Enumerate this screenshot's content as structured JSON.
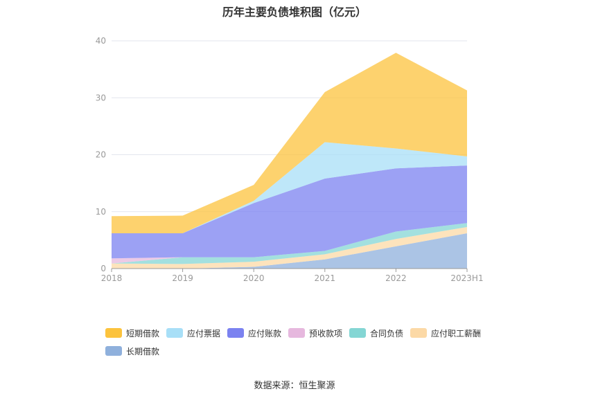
{
  "chart_data": {
    "type": "area",
    "stacked": true,
    "title": "历年主要负债堆积图（亿元）",
    "categories": [
      "2018",
      "2019",
      "2020",
      "2021",
      "2022",
      "2023H1"
    ],
    "ylim": [
      0,
      40
    ],
    "yticks": [
      0,
      10,
      20,
      30,
      40
    ],
    "grid": true,
    "legend_position": "bottom",
    "series": [
      {
        "name": "长期借款",
        "color": "#8fb0dc",
        "values": [
          0.0,
          0.0,
          0.3,
          1.6,
          3.9,
          6.2
        ]
      },
      {
        "name": "应付职工薪酬",
        "color": "#fcd9a6",
        "values": [
          0.9,
          0.8,
          0.9,
          0.9,
          1.3,
          1.1
        ]
      },
      {
        "name": "合同负债",
        "color": "#84d6d4",
        "values": [
          0.0,
          1.2,
          0.8,
          0.6,
          1.3,
          0.7
        ]
      },
      {
        "name": "预收款项",
        "color": "#e6b8de",
        "values": [
          0.9,
          0.0,
          0.0,
          0.0,
          0.0,
          0.0
        ]
      },
      {
        "name": "应付账款",
        "color": "#7b82f0",
        "values": [
          4.4,
          4.2,
          9.5,
          12.7,
          11.1,
          10.1
        ]
      },
      {
        "name": "应付票据",
        "color": "#a8dff7",
        "values": [
          0.0,
          0.0,
          0.4,
          6.4,
          3.5,
          1.6
        ]
      },
      {
        "name": "短期借款",
        "color": "#fcc33d",
        "values": [
          3.0,
          3.1,
          2.8,
          8.8,
          16.8,
          11.6
        ]
      }
    ]
  },
  "legend_order": [
    "短期借款",
    "应付票据",
    "应付账款",
    "预收款项",
    "合同负债",
    "应付职工薪酬",
    "长期借款"
  ],
  "source": "数据来源：恒生聚源"
}
